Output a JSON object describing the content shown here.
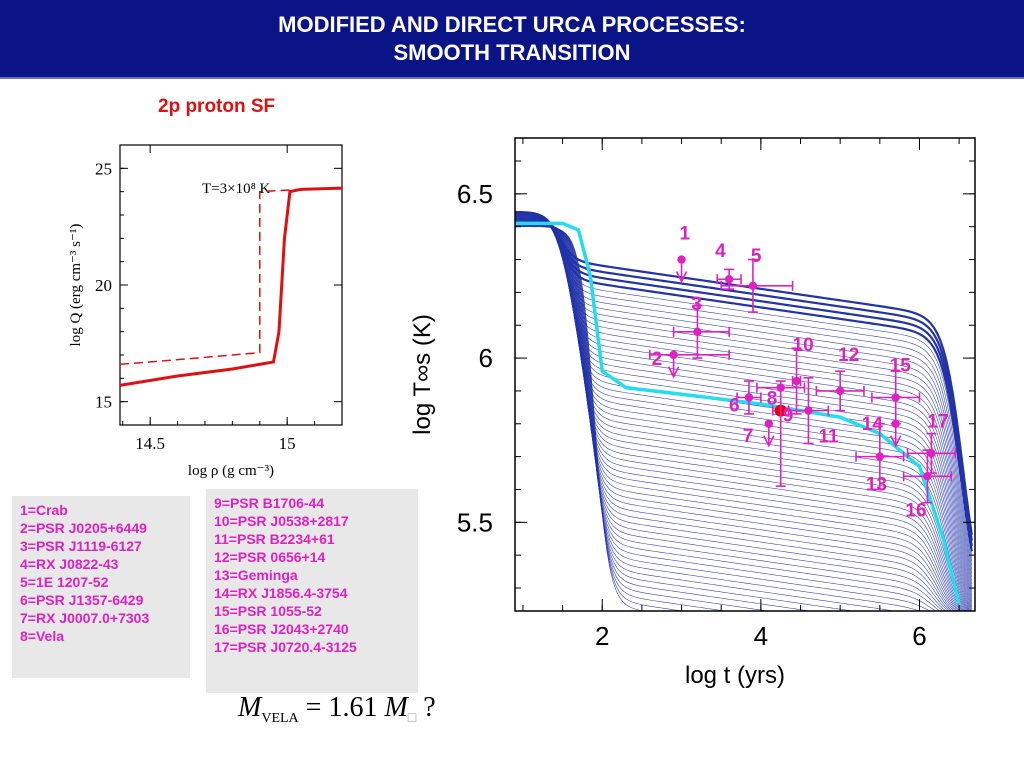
{
  "header": {
    "title_line1": "MODIFIED AND DIRECT URCA PROCESSES:",
    "title_line2": "SMOOTH TRANSITION",
    "bg_color": "#0a1487"
  },
  "subtitle": "2p proton SF",
  "chart_data": [
    {
      "type": "line",
      "annotation": "T=3×10⁸ K",
      "xlabel": "log ρ (g cm⁻³)",
      "ylabel": "log Q (erg cm⁻³ s⁻¹)",
      "xlim": [
        14.39,
        15.2
      ],
      "ylim": [
        14,
        26
      ],
      "xticks": [
        "14.5",
        "15"
      ],
      "yticks": [
        "15",
        "20",
        "25"
      ],
      "series": [
        {
          "style": "solid",
          "color": "#e01010",
          "x": [
            14.39,
            14.6,
            14.8,
            14.95,
            14.97,
            14.99,
            15.01,
            15.05,
            15.2
          ],
          "y": [
            15.7,
            16.1,
            16.4,
            16.7,
            18.0,
            22.0,
            24.0,
            24.1,
            24.15
          ]
        },
        {
          "style": "dashed",
          "color": "#e01010",
          "x": [
            14.39,
            14.6,
            14.8,
            14.9,
            14.9,
            15.05,
            15.2
          ],
          "y": [
            16.6,
            16.8,
            17.0,
            17.1,
            24.0,
            24.1,
            24.15
          ]
        }
      ]
    },
    {
      "type": "line",
      "xlabel": "log t   (yrs)",
      "ylabel": "log T∞s (K)",
      "xlim": [
        0.9,
        6.7
      ],
      "ylim": [
        5.23,
        6.67
      ],
      "xticks": [
        "2",
        "4",
        "6"
      ],
      "yticks": [
        "5.5",
        "6",
        "6.5"
      ],
      "series_color": "#2233aa",
      "highlight_color": "#22ddee",
      "highlight_curve": {
        "x": [
          0.9,
          1.5,
          1.7,
          1.85,
          2.0,
          2.3,
          3.0,
          4.0,
          5.0,
          5.5,
          6.0,
          6.3,
          6.5
        ],
        "y": [
          6.41,
          6.41,
          6.39,
          6.25,
          5.96,
          5.91,
          5.89,
          5.86,
          5.82,
          5.77,
          5.67,
          5.45,
          5.25
        ]
      },
      "data_points": [
        {
          "label": "1",
          "x": 3.0,
          "y": 6.3,
          "upper_limit": true
        },
        {
          "label": "2",
          "x": 2.9,
          "y": 6.01,
          "xerr": [
            0.3,
            0.7
          ],
          "upper_limit": true
        },
        {
          "label": "3",
          "x": 3.2,
          "y": 6.08,
          "xerr": [
            0.3,
            0.4
          ],
          "yerr": 0.08
        },
        {
          "label": "4",
          "x": 3.6,
          "y": 6.24,
          "xerr": 0.15,
          "yerr": 0.03
        },
        {
          "label": "5",
          "x": 3.9,
          "y": 6.22,
          "xerr": [
            0.4,
            0.5
          ],
          "yerr": 0.08
        },
        {
          "label": "6",
          "x": 3.85,
          "y": 5.88,
          "xerr": 0.15,
          "yerr": 0.05
        },
        {
          "label": "7",
          "x": 4.1,
          "y": 5.8,
          "upper_limit": true
        },
        {
          "label": "8",
          "x": 4.25,
          "y": 5.84,
          "xerr": 0.1,
          "yerr": 0.01,
          "highlight": true,
          "color": "#ee0000"
        },
        {
          "label": "9",
          "x": 4.25,
          "y": 5.91,
          "xerr": [
            0.3,
            0.3
          ],
          "yerr": [
            0.3,
            0.02
          ]
        },
        {
          "label": "10",
          "x": 4.45,
          "y": 5.93,
          "xerr": 0.05,
          "yerr": 0.1
        },
        {
          "label": "11",
          "x": 4.6,
          "y": 5.84,
          "xerr": 0.25,
          "yerr": 0.1
        },
        {
          "label": "12",
          "x": 5.0,
          "y": 5.9,
          "xerr": 0.3,
          "yerr": 0.06
        },
        {
          "label": "13",
          "x": 5.5,
          "y": 5.7,
          "xerr": 0.3,
          "yerr": 0.1
        },
        {
          "label": "14",
          "x": 5.7,
          "y": 5.8,
          "upper_limit": true
        },
        {
          "label": "15",
          "x": 5.7,
          "y": 5.88,
          "xerr": 0.3,
          "yerr": 0.08
        },
        {
          "label": "16",
          "x": 6.1,
          "y": 5.64,
          "xerr": 0.3,
          "yerr": 0.08
        },
        {
          "label": "17",
          "x": 6.15,
          "y": 5.71,
          "xerr": 0.3,
          "yerr": 0.06
        }
      ]
    }
  ],
  "legend_left": [
    "1=Crab",
    "2=PSR J0205+6449",
    "3=PSR J1119-6127",
    "4=RX J0822-43",
    "5=1E 1207-52",
    "6=PSR J1357-6429",
    "7=RX J0007.0+7303",
    "8=Vela"
  ],
  "legend_right": [
    "9=PSR B1706-44",
    "10=PSR J0538+2817",
    "11=PSR B2234+61",
    "12=PSR 0656+14",
    "13=Geminga",
    "14=RX J1856.4-3754",
    "15=PSR 1055-52",
    "16=PSR J2043+2740",
    "17=PSR J0720.4-3125"
  ],
  "formula": {
    "m": "M",
    "sub": "VELA",
    "eq": " = 1.61 ",
    "m2": "M",
    "box": "□",
    "q": " ?"
  }
}
